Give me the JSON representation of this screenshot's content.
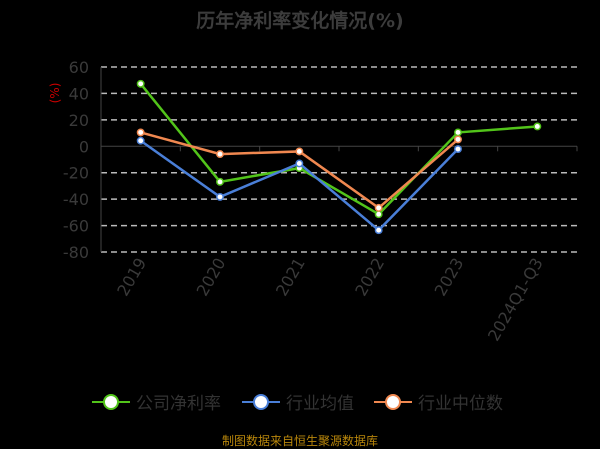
{
  "chart_data": {
    "type": "line",
    "title": "历年净利率变化情况(%)",
    "ylabel": "(%)",
    "categories": [
      "2019",
      "2020",
      "2021",
      "2022",
      "2023",
      "2024Q1-Q3"
    ],
    "ylim": [
      -80,
      60
    ],
    "yticks": [
      60,
      40,
      20,
      0,
      -20,
      -40,
      -60,
      -80
    ],
    "grid": true,
    "legend_position": "bottom",
    "series": [
      {
        "name": "公司净利率",
        "color": "#52c41a",
        "values": [
          47.3,
          -26.9,
          -16.5,
          -51.4,
          10.5,
          15.0
        ]
      },
      {
        "name": "行业均值",
        "color": "#4a7fd8",
        "values": [
          4.2,
          -38.3,
          -13.0,
          -63.5,
          -2.1,
          null
        ]
      },
      {
        "name": "行业中位数",
        "color": "#f08850",
        "values": [
          10.5,
          -5.9,
          -3.9,
          -46.6,
          5.2,
          null
        ]
      }
    ]
  },
  "source": "制图数据来自恒生聚源数据库"
}
